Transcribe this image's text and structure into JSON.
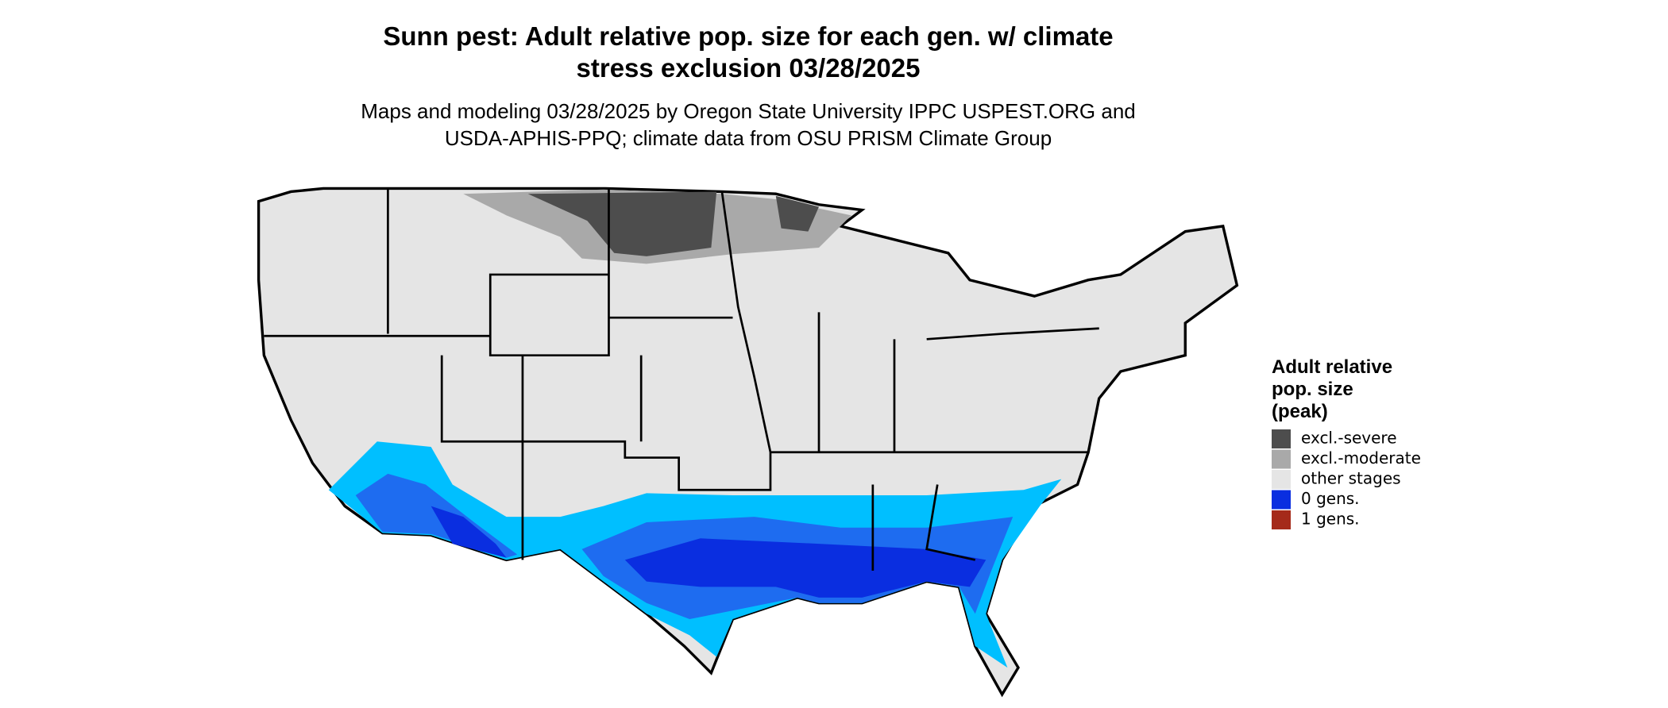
{
  "header": {
    "title": [
      "Sunn pest: Adult relative pop. size for each gen. w/ climate",
      "stress exclusion 03/28/2025"
    ],
    "subtitle": [
      "Maps and modeling 03/28/2025 by Oregon State University IPPC USPEST.ORG and",
      "USDA-APHIS-PPQ; climate data from OSU PRISM Climate Group"
    ]
  },
  "legend": {
    "title": [
      "Adult relative",
      "pop. size",
      "(peak)"
    ],
    "items": [
      {
        "label": "excl.-severe",
        "color": "#4d4d4d"
      },
      {
        "label": "excl.-moderate",
        "color": "#a9a9a9"
      },
      {
        "label": "other stages",
        "color": "#e5e5e5"
      },
      {
        "label": "0 gens.",
        "color": "#0a2ee0"
      },
      {
        "label": "1 gens.",
        "color": "#a52a1a"
      }
    ]
  }
}
